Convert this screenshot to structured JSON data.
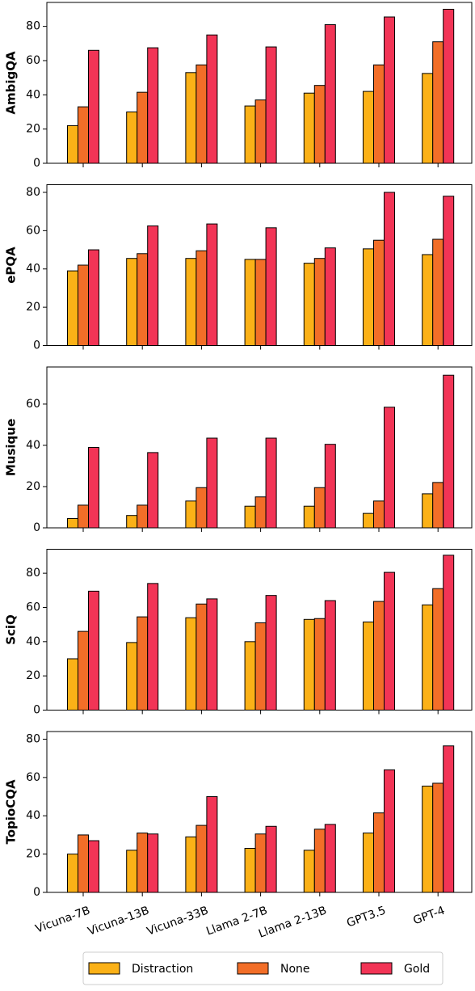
{
  "chart_data": [
    {
      "type": "bar",
      "ylabel": "AmbigQA",
      "ylim": [
        0,
        94
      ],
      "yticks": [
        0,
        20,
        40,
        60,
        80
      ],
      "series": [
        {
          "values": [
            22,
            30,
            53,
            33.5,
            41,
            42,
            52.5
          ]
        },
        {
          "values": [
            33,
            41.5,
            57.5,
            37,
            45.5,
            57.5,
            71
          ]
        },
        {
          "values": [
            66,
            67.5,
            75,
            68,
            81,
            85.5,
            90
          ]
        }
      ]
    },
    {
      "type": "bar",
      "ylabel": "ePQA",
      "ylim": [
        0,
        84
      ],
      "yticks": [
        0,
        20,
        40,
        60,
        80
      ],
      "series": [
        {
          "values": [
            39,
            45.5,
            45.5,
            45,
            43,
            50.5,
            47.5
          ]
        },
        {
          "values": [
            42,
            48,
            49.5,
            45,
            45.5,
            55,
            55.5
          ]
        },
        {
          "values": [
            50,
            62.5,
            63.5,
            61.5,
            51,
            80,
            78
          ]
        }
      ]
    },
    {
      "type": "bar",
      "ylabel": "Musique",
      "ylim": [
        0,
        78
      ],
      "yticks": [
        0,
        20,
        40,
        60
      ],
      "series": [
        {
          "values": [
            4.5,
            6,
            13,
            10.5,
            10.5,
            7,
            16.5
          ]
        },
        {
          "values": [
            11,
            11,
            19.5,
            15,
            19.5,
            13,
            22
          ]
        },
        {
          "values": [
            39,
            36.5,
            43.5,
            43.5,
            40.5,
            58.5,
            74
          ]
        }
      ]
    },
    {
      "type": "bar",
      "ylabel": "SciQ",
      "ylim": [
        0,
        94
      ],
      "yticks": [
        0,
        20,
        40,
        60,
        80
      ],
      "series": [
        {
          "values": [
            30,
            39.5,
            54,
            40,
            53,
            51.5,
            61.5
          ]
        },
        {
          "values": [
            46,
            54.5,
            62,
            51,
            53.5,
            63.5,
            71
          ]
        },
        {
          "values": [
            69.5,
            74,
            65,
            67,
            64,
            80.5,
            90.5
          ]
        }
      ]
    },
    {
      "type": "bar",
      "ylabel": "TopioCQA",
      "ylim": [
        0,
        84
      ],
      "yticks": [
        0,
        20,
        40,
        60,
        80
      ],
      "categories": [
        "Vicuna-7B",
        "Vicuna-13B",
        "Vicuna-33B",
        "Llama 2-7B",
        "Llama 2-13B",
        "GPT3.5",
        "GPT-4"
      ],
      "series": [
        {
          "name": "Distraction",
          "color": "#fbb117",
          "values": [
            20,
            22,
            29,
            23,
            22,
            31,
            55.5
          ]
        },
        {
          "name": "None",
          "color": "#f26e28",
          "values": [
            30,
            31,
            35,
            30.5,
            33,
            41.5,
            57
          ]
        },
        {
          "name": "Gold",
          "color": "#f23456",
          "values": [
            27,
            30.5,
            50,
            34.5,
            35.5,
            64,
            76.5
          ]
        }
      ]
    }
  ]
}
